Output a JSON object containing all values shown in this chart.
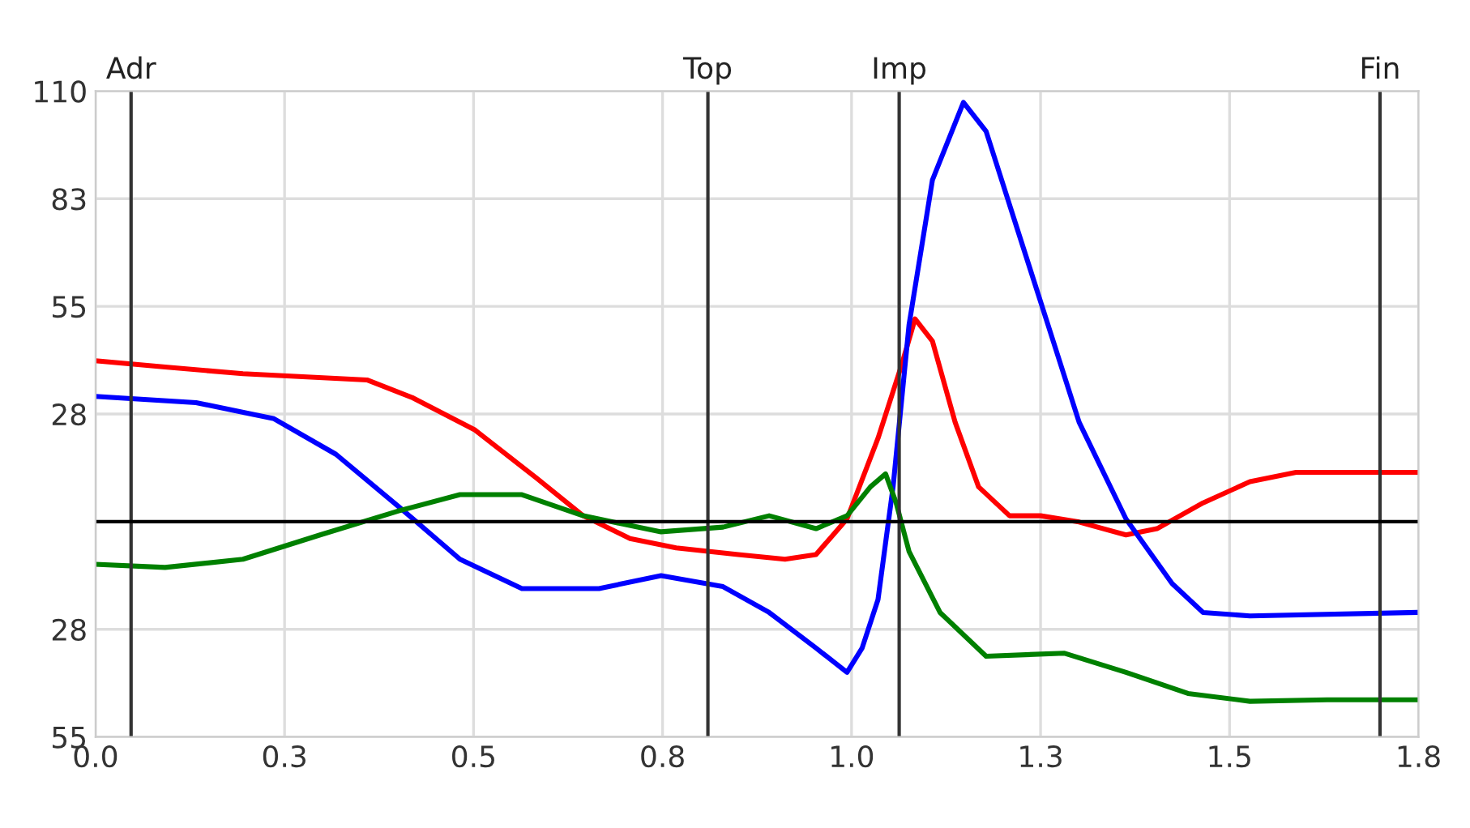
{
  "chart_data": {
    "type": "line",
    "grid": true,
    "marker": "none",
    "line_style": "solid",
    "xlim": [
      0,
      1.75
    ],
    "xticks": [
      {
        "value": 0,
        "label": "0.0"
      },
      {
        "value": 0.25,
        "label": "0.3"
      },
      0.5,
      {
        "value": 0.75,
        "label": "0.8"
      },
      {
        "value": 1.0,
        "label": "1.0"
      },
      {
        "value": 1.25,
        "label": "1.3"
      },
      1.5,
      {
        "value": 1.75,
        "label": "1.8"
      }
    ],
    "ylim": [
      -55,
      110
    ],
    "yticks": [
      {
        "value": 110,
        "label": "110"
      },
      {
        "value": 82.5,
        "label": "83"
      },
      {
        "value": 55,
        "label": "55"
      },
      {
        "value": 27.5,
        "label": "28"
      },
      {
        "value": 0,
        "label": null
      },
      {
        "value": -27.5,
        "label": "28"
      },
      {
        "value": -55,
        "label": "55"
      }
    ],
    "ref_lines": [
      {
        "axis": "x",
        "value": 0.047,
        "label": "Adr",
        "color": "#333333"
      },
      {
        "axis": "x",
        "value": 0.81,
        "label": "Top",
        "color": "#333333"
      },
      {
        "axis": "x",
        "value": 1.063,
        "label": "Imp",
        "color": "#333333"
      },
      {
        "axis": "x",
        "value": 1.699,
        "label": "Fin",
        "color": "#333333"
      },
      {
        "axis": "y",
        "value": 0,
        "label": null,
        "color": "#000000"
      }
    ],
    "series": [
      {
        "color": "#ff0000",
        "x": [
          0,
          0.092,
          0.195,
          0.359,
          0.42,
          0.502,
          0.584,
          0.645,
          0.707,
          0.768,
          0.85,
          0.912,
          0.953,
          0.994,
          1.035,
          1.066,
          1.084,
          1.107,
          1.137,
          1.168,
          1.209,
          1.25,
          1.301,
          1.363,
          1.404,
          1.465,
          1.527,
          1.588,
          1.746
        ],
        "values": [
          41.1,
          39.5,
          37.8,
          36.2,
          31.6,
          23.4,
          11.0,
          1.5,
          -4.3,
          -6.7,
          -8.4,
          -9.6,
          -8.4,
          0.7,
          21.3,
          39.9,
          51.8,
          46.1,
          25.4,
          8.9,
          1.5,
          1.5,
          -0.1,
          -3.4,
          -1.8,
          4.8,
          10.2,
          12.6,
          12.6
        ]
      },
      {
        "color": "#0000ff",
        "x": [
          0,
          0.133,
          0.236,
          0.318,
          0.4,
          0.482,
          0.564,
          0.666,
          0.748,
          0.83,
          0.891,
          0.953,
          0.994,
          1.014,
          1.035,
          1.055,
          1.076,
          1.107,
          1.148,
          1.178,
          1.219,
          1.26,
          1.301,
          1.363,
          1.424,
          1.465,
          1.527,
          1.746
        ],
        "values": [
          32.0,
          30.4,
          26.3,
          17.2,
          4.0,
          -9.6,
          -17.1,
          -17.1,
          -13.8,
          -16.6,
          -23.2,
          -32.3,
          -38.5,
          -32.3,
          -19.9,
          9.0,
          50.2,
          87.3,
          107.1,
          99.7,
          74.9,
          50.2,
          25.4,
          0.7,
          -15.8,
          -23.2,
          -24.1,
          -23.2
        ]
      },
      {
        "color": "#008000",
        "x": [
          0,
          0.092,
          0.195,
          0.297,
          0.4,
          0.482,
          0.564,
          0.645,
          0.748,
          0.83,
          0.891,
          0.953,
          0.994,
          1.025,
          1.045,
          1.059,
          1.076,
          1.117,
          1.178,
          1.281,
          1.363,
          1.445,
          1.527,
          1.629,
          1.746
        ],
        "values": [
          -10.9,
          -11.7,
          -9.6,
          -3.4,
          2.7,
          6.9,
          6.9,
          1.5,
          -2.6,
          -1.4,
          1.5,
          -1.8,
          1.5,
          8.9,
          12.2,
          4.8,
          -7.6,
          -23.2,
          -34.4,
          -33.6,
          -38.5,
          -43.9,
          -45.9,
          -45.5,
          -45.5
        ]
      }
    ]
  }
}
